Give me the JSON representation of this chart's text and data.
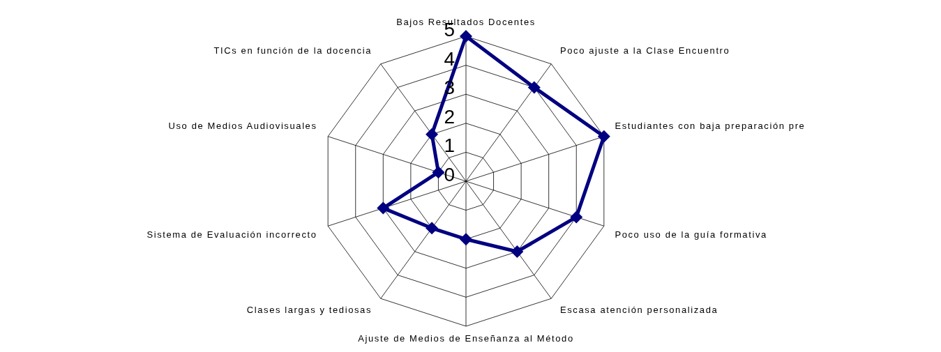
{
  "chart_data": {
    "type": "radar",
    "categories": [
      "Bajos Resultados Docentes",
      "Poco ajuste a la Clase Encuentro",
      "Estudiantes con baja preparación pre",
      "Poco uso de la guía formativa",
      "Escasa atención personalizada",
      "Ajuste de Medios de Enseñanza al Método",
      "Clases largas y tediosas",
      "Sistema de Evaluación incorrecto",
      "Uso de Medios Audiovisuales",
      "TICs en función de la docencia"
    ],
    "series": [
      {
        "color": "#000080",
        "values": [
          5,
          4,
          5,
          4,
          3,
          2,
          2,
          3,
          1,
          2
        ]
      }
    ],
    "ylim": [
      0,
      5
    ],
    "yticks": [
      0,
      1,
      2,
      3,
      4,
      5
    ],
    "grid": true,
    "marker": "diamond",
    "line_style": "solid"
  }
}
